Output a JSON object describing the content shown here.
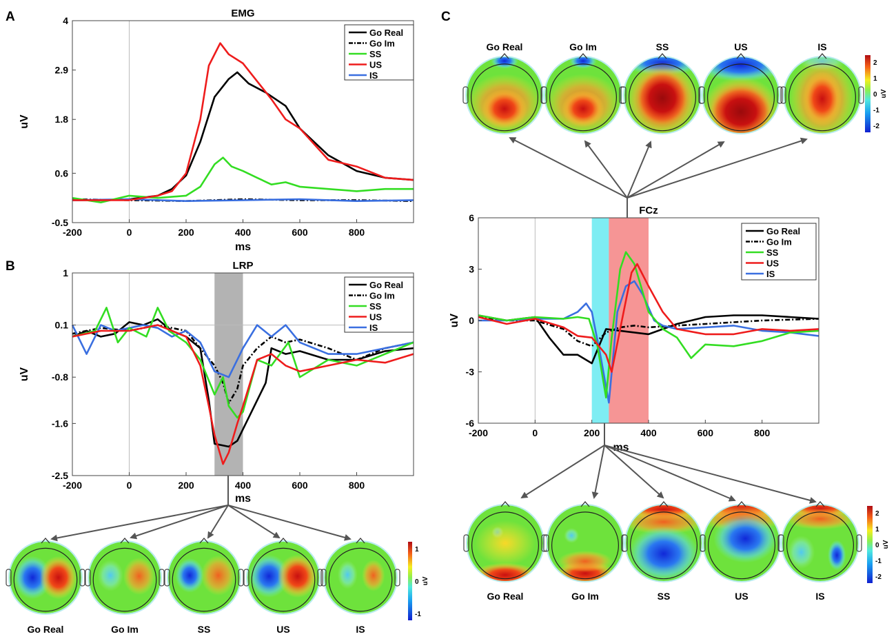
{
  "panels": {
    "a": "A",
    "b": "B",
    "c": "C"
  },
  "conditions": [
    {
      "key": "go_real",
      "label": "Go Real",
      "color": "#000000",
      "dash": false
    },
    {
      "key": "go_im",
      "label": "Go Im",
      "color": "#000000",
      "dash": true
    },
    {
      "key": "ss",
      "label": "SS",
      "color": "#33dd22",
      "dash": false
    },
    {
      "key": "us",
      "label": "US",
      "color": "#ee1c1c",
      "dash": false
    },
    {
      "key": "is",
      "label": "IS",
      "color": "#3a6fe0",
      "dash": false
    }
  ],
  "chart_data": [
    {
      "id": "emg",
      "type": "line",
      "title": "EMG",
      "xlabel": "ms",
      "ylabel": "uV",
      "xlim": [
        -200,
        1000
      ],
      "ylim": [
        -0.5,
        4
      ],
      "xticks": [
        "-200",
        "0",
        "200",
        "400",
        "600",
        "800"
      ],
      "yticks": [
        "-0.5",
        "0.6",
        "1.8",
        "2.9",
        "4"
      ],
      "legend": "top-right",
      "series": [
        {
          "name": "Go Real",
          "x": [
            -200,
            -100,
            0,
            100,
            150,
            200,
            250,
            300,
            350,
            380,
            420,
            480,
            550,
            600,
            700,
            800,
            900,
            1000
          ],
          "values": [
            0,
            0,
            0.02,
            0.1,
            0.25,
            0.55,
            1.3,
            2.3,
            2.7,
            2.85,
            2.6,
            2.4,
            2.1,
            1.6,
            1.0,
            0.65,
            0.5,
            0.45
          ]
        },
        {
          "name": "Go Im",
          "x": [
            -200,
            0,
            200,
            400,
            600,
            800,
            1000
          ],
          "values": [
            0.02,
            0,
            -0.02,
            0.02,
            0,
            0,
            -0.02
          ]
        },
        {
          "name": "SS",
          "x": [
            -200,
            -100,
            0,
            100,
            200,
            250,
            300,
            330,
            360,
            400,
            450,
            500,
            550,
            600,
            700,
            800,
            900,
            1000
          ],
          "values": [
            0.05,
            -0.05,
            0.1,
            0.05,
            0.1,
            0.3,
            0.8,
            0.95,
            0.75,
            0.65,
            0.5,
            0.35,
            0.4,
            0.3,
            0.25,
            0.2,
            0.25,
            0.25
          ]
        },
        {
          "name": "US",
          "x": [
            -200,
            -100,
            0,
            100,
            150,
            200,
            250,
            280,
            320,
            350,
            400,
            450,
            500,
            550,
            600,
            700,
            800,
            900,
            1000
          ],
          "values": [
            0,
            0,
            0,
            0.1,
            0.2,
            0.6,
            1.8,
            3.0,
            3.5,
            3.25,
            3.05,
            2.65,
            2.25,
            1.8,
            1.6,
            0.9,
            0.75,
            0.5,
            0.45
          ]
        },
        {
          "name": "IS",
          "x": [
            -200,
            0,
            200,
            400,
            600,
            800,
            1000
          ],
          "values": [
            0,
            0.02,
            -0.02,
            0,
            0.02,
            -0.02,
            0
          ]
        }
      ]
    },
    {
      "id": "lrp",
      "type": "line",
      "title": "LRP",
      "xlabel": "ms",
      "ylabel": "uV",
      "xlim": [
        -200,
        1000
      ],
      "ylim": [
        -2.5,
        1
      ],
      "xticks": [
        "-200",
        "0",
        "200",
        "400",
        "600",
        "800"
      ],
      "yticks": [
        "-2.5",
        "-1.6",
        "-0.8",
        "0.1",
        "1"
      ],
      "legend": "top-right",
      "shaded_window_ms": [
        300,
        400
      ],
      "series": [
        {
          "name": "Go Real",
          "x": [
            -200,
            -150,
            -100,
            -50,
            0,
            50,
            100,
            150,
            200,
            250,
            280,
            300,
            350,
            380,
            400,
            450,
            480,
            500,
            550,
            600,
            700,
            800,
            900,
            1000
          ],
          "values": [
            -0.1,
            0,
            -0.1,
            -0.05,
            0.15,
            0.1,
            0.2,
            0,
            -0.1,
            -0.3,
            -1.2,
            -1.95,
            -2.0,
            -1.9,
            -1.7,
            -1.2,
            -0.9,
            -0.3,
            -0.4,
            -0.35,
            -0.5,
            -0.5,
            -0.35,
            -0.3
          ]
        },
        {
          "name": "Go Im",
          "x": [
            -200,
            -100,
            0,
            100,
            200,
            250,
            300,
            330,
            350,
            380,
            400,
            450,
            500,
            550,
            600,
            700,
            800,
            900,
            1000
          ],
          "values": [
            -0.05,
            0.05,
            0,
            0.1,
            0,
            -0.3,
            -0.6,
            -0.9,
            -1.25,
            -1.0,
            -0.6,
            -0.3,
            -0.1,
            -0.2,
            -0.15,
            -0.3,
            -0.5,
            -0.3,
            -0.2
          ]
        },
        {
          "name": "SS",
          "x": [
            -200,
            -120,
            -80,
            -40,
            0,
            60,
            100,
            140,
            200,
            250,
            300,
            330,
            350,
            380,
            400,
            450,
            500,
            560,
            600,
            700,
            800,
            900,
            1000
          ],
          "values": [
            -0.1,
            0.0,
            0.4,
            -0.2,
            0.05,
            -0.1,
            0.4,
            0.0,
            -0.2,
            -0.5,
            -1.1,
            -0.8,
            -1.3,
            -1.5,
            -1.4,
            -0.5,
            -0.6,
            -0.2,
            -0.8,
            -0.5,
            -0.6,
            -0.4,
            -0.2
          ]
        },
        {
          "name": "US",
          "x": [
            -200,
            -100,
            0,
            100,
            200,
            250,
            280,
            300,
            330,
            350,
            380,
            400,
            450,
            500,
            550,
            600,
            700,
            800,
            900,
            1000
          ],
          "values": [
            -0.1,
            0,
            0,
            0.1,
            -0.1,
            -0.6,
            -1.3,
            -1.8,
            -2.3,
            -2.1,
            -1.6,
            -1.3,
            -0.5,
            -0.4,
            -0.6,
            -0.7,
            -0.6,
            -0.5,
            -0.55,
            -0.4
          ]
        },
        {
          "name": "IS",
          "x": [
            -200,
            -150,
            -100,
            -50,
            0,
            50,
            100,
            150,
            200,
            250,
            300,
            350,
            400,
            450,
            500,
            550,
            600,
            700,
            800,
            900,
            1000
          ],
          "values": [
            0.1,
            -0.4,
            0.1,
            0.0,
            0.05,
            0.1,
            0.05,
            -0.1,
            0.0,
            -0.2,
            -0.7,
            -0.8,
            -0.3,
            0.1,
            -0.1,
            0.1,
            -0.2,
            -0.4,
            -0.4,
            -0.3,
            -0.2
          ]
        }
      ]
    },
    {
      "id": "fcz",
      "type": "line",
      "title": "FCz",
      "xlabel": "ms",
      "ylabel": "uV",
      "xlim": [
        -200,
        1000
      ],
      "ylim": [
        -6,
        6
      ],
      "xticks": [
        "-200",
        "0",
        "200",
        "400",
        "600",
        "800"
      ],
      "yticks": [
        "-6",
        "-3",
        "0",
        "3",
        "6"
      ],
      "legend": "top-right",
      "shaded_windows_ms": [
        [
          200,
          260
        ],
        [
          260,
          400
        ]
      ],
      "series": [
        {
          "name": "Go Real",
          "x": [
            -200,
            -100,
            0,
            50,
            100,
            150,
            200,
            250,
            300,
            400,
            500,
            600,
            700,
            800,
            900,
            1000
          ],
          "values": [
            0.3,
            0,
            0.2,
            -1.0,
            -2.0,
            -2.0,
            -2.5,
            -0.5,
            -0.6,
            -0.8,
            -0.2,
            0.2,
            0.3,
            0.3,
            0.2,
            0.1
          ]
        },
        {
          "name": "Go Im",
          "x": [
            -200,
            -100,
            0,
            100,
            150,
            200,
            250,
            300,
            350,
            400,
            500,
            600,
            800,
            1000
          ],
          "values": [
            0.2,
            0,
            0,
            -0.5,
            -1.2,
            -1.5,
            -0.7,
            -0.4,
            -0.3,
            -0.4,
            -0.3,
            -0.2,
            0,
            0.1
          ]
        },
        {
          "name": "SS",
          "x": [
            -200,
            -100,
            0,
            100,
            150,
            190,
            220,
            250,
            270,
            300,
            320,
            350,
            400,
            450,
            500,
            550,
            600,
            700,
            800,
            900,
            1000
          ],
          "values": [
            0.3,
            0,
            0.2,
            0.1,
            0.2,
            0.1,
            -1.5,
            -4.5,
            -1.0,
            3.0,
            4.0,
            3.3,
            0.5,
            -0.5,
            -1.0,
            -2.2,
            -1.4,
            -1.5,
            -1.2,
            -0.7,
            -0.6
          ]
        },
        {
          "name": "US",
          "x": [
            -200,
            -100,
            0,
            100,
            150,
            200,
            250,
            270,
            300,
            340,
            360,
            400,
            450,
            500,
            600,
            700,
            800,
            900,
            1000
          ],
          "values": [
            0.2,
            -0.2,
            0.1,
            -0.4,
            -0.9,
            -1.0,
            -2.0,
            -3.0,
            -0.5,
            2.8,
            3.3,
            2.0,
            0.5,
            -0.5,
            -0.8,
            -0.8,
            -0.5,
            -0.6,
            -0.5
          ]
        },
        {
          "name": "IS",
          "x": [
            -200,
            -100,
            0,
            100,
            150,
            180,
            200,
            230,
            260,
            290,
            320,
            350,
            380,
            420,
            450,
            500,
            600,
            700,
            800,
            900,
            1000
          ],
          "values": [
            0,
            0,
            0.1,
            0.1,
            0.5,
            1.0,
            0.5,
            -2.0,
            -4.8,
            0.5,
            2.0,
            2.3,
            1.5,
            0,
            -0.3,
            -0.5,
            -0.4,
            -0.3,
            -0.6,
            -0.7,
            -0.9
          ]
        }
      ]
    }
  ],
  "topomaps": {
    "lrp": {
      "labels": [
        "Go Real",
        "Go Im",
        "SS",
        "US",
        "IS"
      ],
      "colorbar": {
        "ticks": [
          "1",
          "0",
          "-1"
        ],
        "unit": "uV"
      }
    },
    "fcz_top": {
      "labels": [
        "Go Real",
        "Go Im",
        "SS",
        "US",
        "IS"
      ],
      "colorbar": {
        "ticks": [
          "2",
          "1",
          "0",
          "-1",
          "-2"
        ],
        "unit": "uV"
      }
    },
    "fcz_bottom": {
      "labels": [
        "Go Real",
        "Go Im",
        "SS",
        "US",
        "IS"
      ],
      "colorbar": {
        "ticks": [
          "2",
          "1",
          "0",
          "-1",
          "-2"
        ],
        "unit": "uV"
      }
    }
  }
}
